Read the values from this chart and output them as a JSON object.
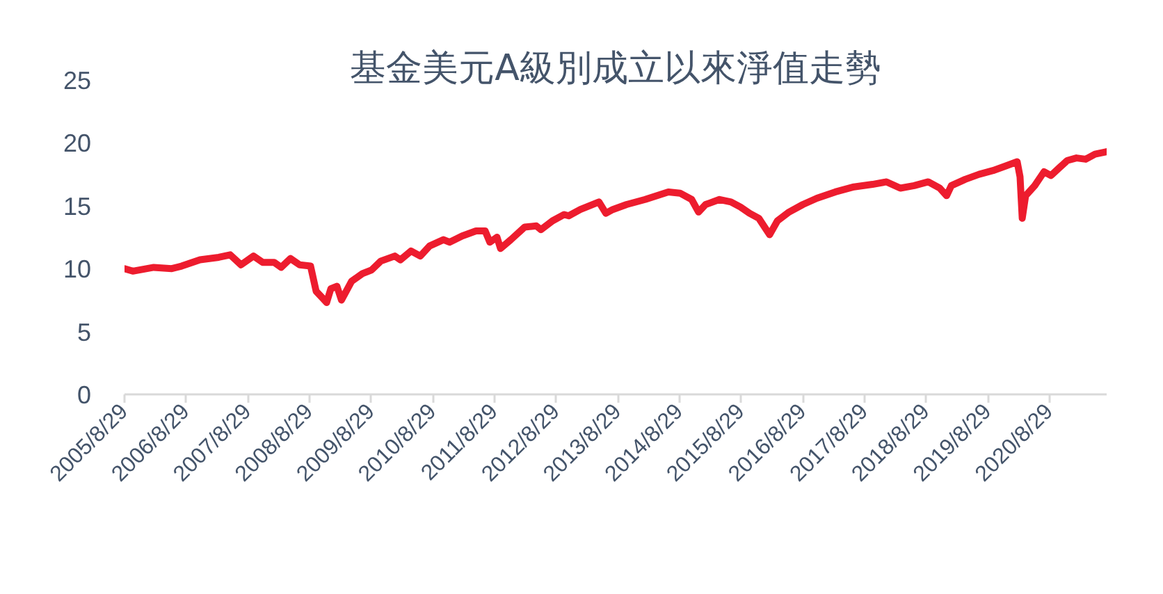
{
  "chart_data": {
    "type": "line",
    "title": "基金美元A級別成立以來淨值走勢",
    "x": [
      "2005-08-29",
      "2005-10-17",
      "2006-02-18",
      "2006-06-05",
      "2006-08-02",
      "2006-11-19",
      "2007-03-10",
      "2007-05-17",
      "2007-07-20",
      "2007-10-02",
      "2007-11-25",
      "2008-02-01",
      "2008-03-14",
      "2008-05-08",
      "2008-07-02",
      "2008-09-04",
      "2008-10-07",
      "2008-11-11",
      "2008-12-08",
      "2009-01-02",
      "2009-02-07",
      "2009-03-06",
      "2009-05-05",
      "2009-07-08",
      "2009-09-01",
      "2009-10-25",
      "2010-01-16",
      "2010-02-18",
      "2010-04-22",
      "2010-06-16",
      "2010-08-10",
      "2010-10-31",
      "2010-12-06",
      "2011-02-19",
      "2011-05-12",
      "2011-07-05",
      "2011-08-02",
      "2011-09-13",
      "2011-10-04",
      "2011-12-04",
      "2012-02-24",
      "2012-05-03",
      "2012-05-30",
      "2012-08-07",
      "2012-10-15",
      "2012-11-11",
      "2013-01-19",
      "2013-05-09",
      "2013-06-19",
      "2013-07-30",
      "2013-10-20",
      "2014-02-07",
      "2014-06-24",
      "2014-09-01",
      "2014-11-09",
      "2014-12-20",
      "2015-01-31",
      "2015-04-23",
      "2015-06-30",
      "2015-08-25",
      "2015-10-18",
      "2015-12-12",
      "2016-02-14",
      "2016-03-31",
      "2016-06-08",
      "2016-08-29",
      "2016-11-20",
      "2017-03-09",
      "2017-06-27",
      "2017-10-15",
      "2018-01-06",
      "2018-03-29",
      "2018-06-19",
      "2018-09-10",
      "2018-11-17",
      "2018-12-28",
      "2019-01-25",
      "2019-04-17",
      "2019-07-08",
      "2019-09-29",
      "2019-12-20",
      "2020-02-19",
      "2020-03-07",
      "2020-03-20",
      "2020-04-09",
      "2020-06-02",
      "2020-07-27",
      "2020-09-06",
      "2020-11-01",
      "2020-12-12",
      "2021-02-04",
      "2021-03-31",
      "2021-05-25",
      "2021-08-02"
    ],
    "series": [
      {
        "color": "#ed1c2e",
        "values": [
          10.0,
          9.8,
          10.1,
          10.0,
          10.2,
          10.7,
          10.9,
          11.1,
          10.3,
          11.0,
          10.5,
          10.5,
          10.1,
          10.8,
          10.3,
          10.2,
          8.2,
          7.7,
          7.3,
          8.4,
          8.6,
          7.5,
          9.0,
          9.6,
          9.9,
          10.6,
          11.0,
          10.7,
          11.4,
          11.0,
          11.8,
          12.3,
          12.1,
          12.6,
          13.0,
          13.0,
          12.1,
          12.5,
          11.6,
          12.3,
          13.3,
          13.4,
          13.1,
          13.8,
          14.3,
          14.2,
          14.7,
          15.3,
          14.4,
          14.7,
          15.1,
          15.5,
          16.1,
          16.0,
          15.5,
          14.5,
          15.1,
          15.5,
          15.3,
          14.9,
          14.4,
          14.0,
          12.7,
          13.8,
          14.5,
          15.1,
          15.6,
          16.1,
          16.5,
          16.7,
          16.9,
          16.4,
          16.6,
          16.9,
          16.4,
          15.8,
          16.6,
          17.1,
          17.5,
          17.8,
          18.2,
          18.5,
          17.3,
          14.0,
          15.8,
          16.6,
          17.7,
          17.4,
          18.1,
          18.6,
          18.8,
          18.7,
          19.1,
          19.3
        ]
      }
    ],
    "xlim": [
      "2005-08-29",
      "2021-08-02"
    ],
    "xticks": [
      {
        "value": "2005-08-29",
        "label": "2005/8/29"
      },
      {
        "value": "2006-08-29",
        "label": "2006/8/29"
      },
      {
        "value": "2007-08-29",
        "label": "2007/8/29"
      },
      {
        "value": "2008-08-29",
        "label": "2008/8/29"
      },
      {
        "value": "2009-08-29",
        "label": "2009/8/29"
      },
      {
        "value": "2010-08-29",
        "label": "2010/8/29"
      },
      {
        "value": "2011-08-29",
        "label": "2011/8/29"
      },
      {
        "value": "2012-08-29",
        "label": "2012/8/29"
      },
      {
        "value": "2013-08-29",
        "label": "2013/8/29"
      },
      {
        "value": "2014-08-29",
        "label": "2014/8/29"
      },
      {
        "value": "2015-08-29",
        "label": "2015/8/29"
      },
      {
        "value": "2016-08-29",
        "label": "2016/8/29"
      },
      {
        "value": "2017-08-29",
        "label": "2017/8/29"
      },
      {
        "value": "2018-08-29",
        "label": "2018/8/29"
      },
      {
        "value": "2019-08-29",
        "label": "2019/8/29"
      },
      {
        "value": "2020-08-29",
        "label": "2020/8/29"
      }
    ],
    "ylim": [
      0,
      25
    ],
    "yticks": [
      0,
      5,
      10,
      15,
      20,
      25
    ],
    "grid": false
  }
}
